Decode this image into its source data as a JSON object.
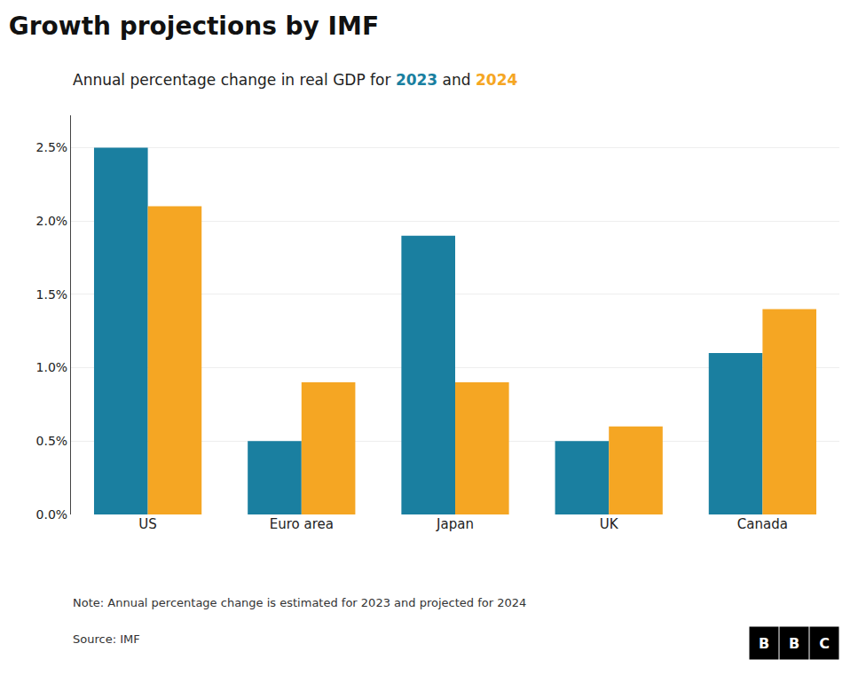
{
  "chart_data": {
    "type": "bar",
    "title": "Growth projections by IMF",
    "subtitle": "Annual percentage change in real GDP for 2023 and 2024",
    "categories": [
      "US",
      "Euro area",
      "Japan",
      "UK",
      "Canada"
    ],
    "series": [
      {
        "name": "2023",
        "color": "#1a7fa0",
        "values": [
          2.5,
          0.5,
          1.9,
          0.5,
          1.1
        ]
      },
      {
        "name": "2024",
        "color": "#f5a623",
        "values": [
          2.1,
          0.9,
          0.9,
          0.6,
          1.4
        ]
      }
    ],
    "ylim": [
      0,
      2.72
    ],
    "yticks": [
      {
        "value": 0.0,
        "label": "0.0%"
      },
      {
        "value": 0.5,
        "label": "0.5%"
      },
      {
        "value": 1.0,
        "label": "1.0%"
      },
      {
        "value": 1.5,
        "label": "1.5%"
      },
      {
        "value": 2.0,
        "label": "2.0%"
      },
      {
        "value": 2.5,
        "label": "2.5%"
      }
    ],
    "grid": true,
    "annotations": [
      "Note: Annual percentage change is estimated for 2023 and projected for 2024",
      "Source: IMF"
    ],
    "logo": "BBC"
  }
}
